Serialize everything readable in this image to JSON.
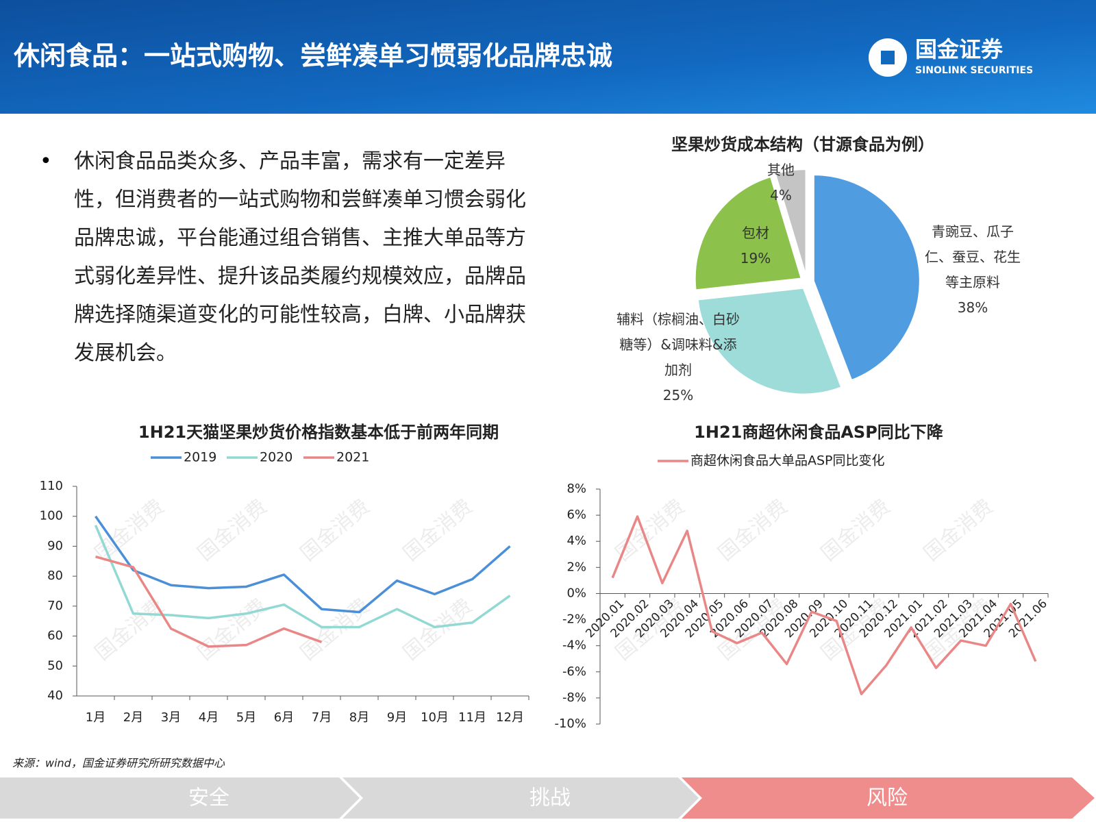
{
  "header": {
    "title": "休闲食品：一站式购物、尝鲜凑单习惯弱化品牌忠诚",
    "logo_cn": "国金证券",
    "logo_en": "SINOLINK SECURITIES"
  },
  "bullet": "休闲食品品类众多、产品丰富，需求有一定差异性，但消费者的一站式购物和尝鲜凑单习惯会弱化品牌忠诚，平台能通过组合销售、主推大单品等方式弱化差异性、提升该品类履约规模效应，品牌品牌选择随渠道变化的可能性较高，白牌、小品牌获发展机会。",
  "watermark": "国金消费",
  "chart_data": [
    {
      "type": "pie",
      "title": "坚果炒货成本结构（甘源食品为例）",
      "categories": [
        "青豌豆、瓜子仁、蚕豆、花生等主原料",
        "辅料（棕榈油、白砂糖等）&调味料&添加剂",
        "包材",
        "其他"
      ],
      "values": [
        38,
        25,
        19,
        4
      ],
      "value_labels": [
        "38%",
        "25%",
        "19%",
        "4%"
      ],
      "colors": [
        "#4f9de0",
        "#9edcd9",
        "#8cc24c",
        "#c4c4c4"
      ]
    },
    {
      "type": "line",
      "title": "1H21天猫坚果炒货价格指数基本低于前两年同期",
      "categories": [
        "1月",
        "2月",
        "3月",
        "4月",
        "5月",
        "6月",
        "7月",
        "8月",
        "9月",
        "10月",
        "11月",
        "12月"
      ],
      "series": [
        {
          "name": "2019",
          "color": "#4a8fd8",
          "values": [
            100,
            82,
            77,
            76,
            76.5,
            80.5,
            69,
            68,
            78.5,
            74,
            79,
            90
          ]
        },
        {
          "name": "2020",
          "color": "#92d8d3",
          "values": [
            97,
            67.5,
            67,
            66,
            67.5,
            70.5,
            63,
            63,
            69,
            63,
            64.5,
            73.5
          ]
        },
        {
          "name": "2021",
          "color": "#e98787",
          "values": [
            86.5,
            83,
            62.5,
            56.5,
            57,
            62.5,
            58,
            null,
            null,
            null,
            null,
            null
          ]
        }
      ],
      "ylim": [
        40,
        110
      ],
      "yticks": [
        40,
        50,
        60,
        70,
        80,
        90,
        100,
        110
      ]
    },
    {
      "type": "line",
      "title": "1H21商超休闲食品ASP同比下降",
      "categories": [
        "2020.01",
        "2020.02",
        "2020.03",
        "2020.04",
        "2020.05",
        "2020.06",
        "2020.07",
        "2020.08",
        "2020.09",
        "2020.10",
        "2020.11",
        "2020.12",
        "2021.01",
        "2021.02",
        "2021.03",
        "2021.04",
        "2021.05",
        "2021.06"
      ],
      "series": [
        {
          "name": "商超休闲食品大单品ASP同比变化",
          "color": "#e98787",
          "values": [
            1.2,
            5.9,
            0.8,
            4.8,
            -2.9,
            -3.8,
            -3.0,
            -5.4,
            -1.4,
            -2.1,
            -7.7,
            -5.5,
            -2.6,
            -5.7,
            -3.6,
            -4.0,
            -0.8,
            -5.2
          ]
        }
      ],
      "ylim": [
        -10,
        8
      ],
      "yticks": [
        {
          "value": -10,
          "label": "-10%"
        },
        {
          "value": -8,
          "label": "-8%"
        },
        {
          "value": -6,
          "label": "-6%"
        },
        {
          "value": -4,
          "label": "-4%"
        },
        {
          "value": -2,
          "label": "-2%"
        },
        {
          "value": 0,
          "label": "0%"
        },
        {
          "value": 2,
          "label": "2%"
        },
        {
          "value": 4,
          "label": "4%"
        },
        {
          "value": 6,
          "label": "6%"
        },
        {
          "value": 8,
          "label": "8%"
        }
      ]
    }
  ],
  "source": "来源：wind，国金证券研究所研究数据中心",
  "nav": [
    "安全",
    "挑战",
    "风险"
  ]
}
